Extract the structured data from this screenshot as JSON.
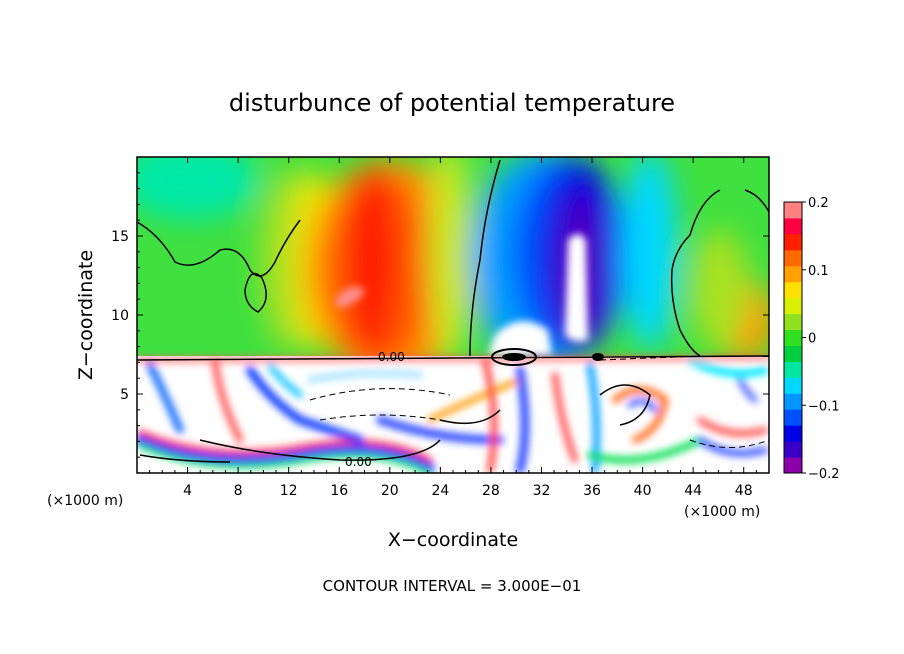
{
  "chart_data": {
    "type": "heatmap",
    "title": "disturbunce of potential temperature",
    "xlabel": "X−coordinate",
    "ylabel": "Z−coordinate",
    "x_unit": "(×1000 m)",
    "x_unit_right": "(×1000 m)",
    "xlim": [
      0,
      50
    ],
    "ylim": [
      0,
      20
    ],
    "x_ticks": [
      4,
      8,
      12,
      16,
      20,
      24,
      28,
      32,
      36,
      40,
      44,
      48
    ],
    "y_ticks": [
      5,
      10,
      15
    ],
    "colorbar": {
      "min": -0.2,
      "max": 0.2,
      "ticks": [
        0.2,
        0.1,
        0,
        -0.1,
        -0.2
      ],
      "tick_labels": [
        "0.2",
        "0.1",
        "0",
        "−0.1",
        "−0.2"
      ],
      "colors": [
        "#8e00a8",
        "#3a00c8",
        "#0000e6",
        "#0050ff",
        "#0096ff",
        "#00d8ff",
        "#00e8a0",
        "#00d040",
        "#30e020",
        "#90e020",
        "#d8f000",
        "#ffe000",
        "#ffa000",
        "#ff6a00",
        "#ff2000",
        "#ff0040",
        "#ff8080"
      ]
    },
    "contour_labels": [
      "0.00",
      "0.00"
    ],
    "contour_interval_text": "CONTOUR INTERVAL = 3.000E−01"
  }
}
